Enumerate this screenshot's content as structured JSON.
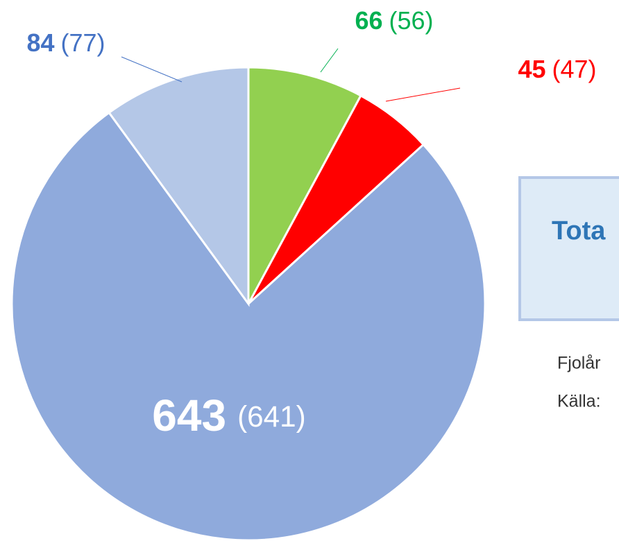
{
  "chart_data": {
    "type": "pie",
    "categories": [
      null,
      null,
      null,
      null
    ],
    "values": [
      66,
      45,
      643,
      84
    ],
    "previous_labels": [
      "(56)",
      "(47)",
      "(641)",
      "(77)"
    ],
    "colors": [
      "#92d050",
      "#ff0000",
      "#8faadc",
      "#b4c7e7"
    ],
    "label_colors": [
      "#00b050",
      "#ff0000",
      "#ffffff",
      "#4472c4"
    ],
    "start_angle": 0,
    "direction": "clockwise"
  },
  "side_box": {
    "title": "Tota"
  },
  "notes": [
    "Fjolår",
    "Källa:"
  ]
}
